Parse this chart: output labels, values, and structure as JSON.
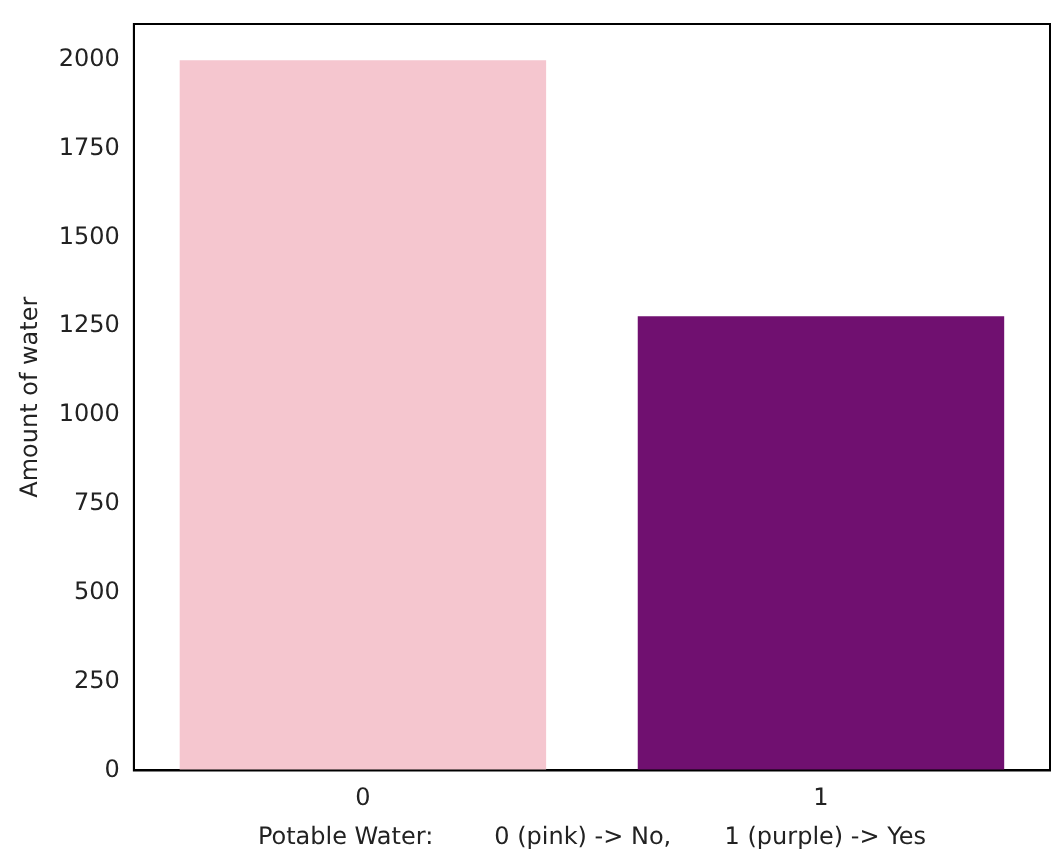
{
  "chart_data": {
    "type": "bar",
    "categories": [
      "0",
      "1"
    ],
    "values": [
      1998,
      1278
    ],
    "colors": [
      "#f5c6cf",
      "#701070"
    ],
    "xlabel": "Potable Water:        0 (pink) -> No,       1 (purple) -> Yes",
    "ylabel": "Amount of water",
    "ylim": [
      0,
      2100
    ],
    "yticks": [
      0,
      250,
      500,
      750,
      1000,
      1250,
      1500,
      1750,
      2000
    ],
    "grid": false,
    "legend": false
  }
}
